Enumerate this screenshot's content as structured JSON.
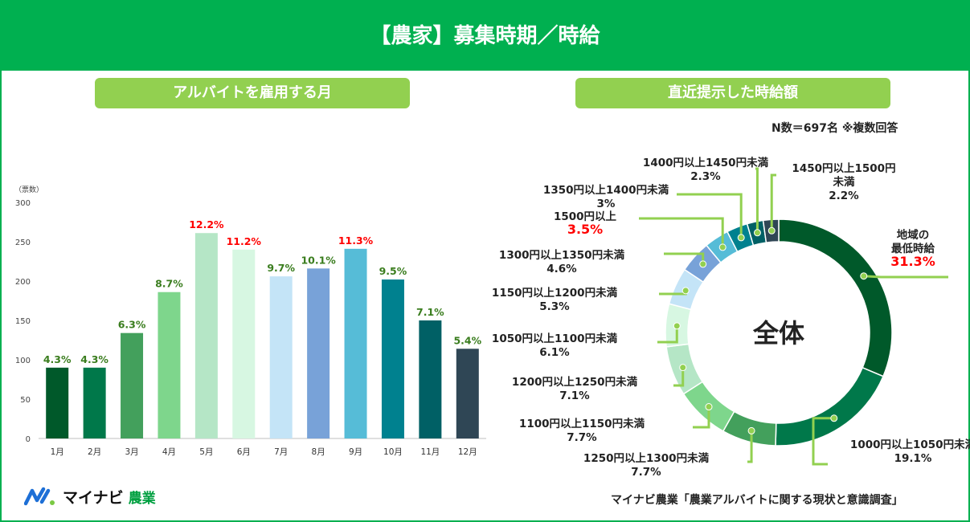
{
  "header": {
    "title": "【農家】募集時期／時給"
  },
  "left_panel": {
    "title": "アルバイトを雇用する月"
  },
  "right_panel": {
    "title": "直近提示した時給額",
    "note": "N数＝697名 ※複数回答"
  },
  "chart_data": [
    {
      "type": "bar",
      "title": "アルバイトを雇用する月",
      "ylabel": "（票数）",
      "ylim": [
        0,
        300
      ],
      "yticks": [
        0,
        50,
        100,
        150,
        200,
        250,
        300
      ],
      "categories": [
        "1月",
        "2月",
        "3月",
        "4月",
        "5月",
        "6月",
        "7月",
        "8月",
        "9月",
        "10月",
        "11月",
        "12月"
      ],
      "values": [
        90,
        90,
        134,
        186,
        261,
        240,
        206,
        216,
        241,
        202,
        150,
        114
      ],
      "labels": [
        "4.3%",
        "4.3%",
        "6.3%",
        "8.7%",
        "12.2%",
        "11.2%",
        "9.7%",
        "10.1%",
        "11.3%",
        "9.5%",
        "7.1%",
        "5.4%"
      ],
      "highlight": [
        false,
        false,
        false,
        false,
        true,
        true,
        false,
        false,
        true,
        false,
        false,
        false
      ],
      "colors": [
        "#00592a",
        "#00784a",
        "#43a05c",
        "#7ed68c",
        "#b5e6c6",
        "#d7f7e2",
        "#c4e4f7",
        "#78a2d8",
        "#56bcd7",
        "#00818f",
        "#006065",
        "#2f4655"
      ]
    },
    {
      "type": "pie",
      "title": "直近提示した時給額",
      "center_label": "全体",
      "slices": [
        {
          "label": "地域の\n最低時給",
          "pct": "31.3%",
          "value": 31.3,
          "color": "#00592a",
          "red": true
        },
        {
          "label": "1000円以上1050円未満",
          "pct": "19.1%",
          "value": 19.1,
          "color": "#00784a",
          "red": false
        },
        {
          "label": "1250円以上1300円未満",
          "pct": "7.7%",
          "value": 7.7,
          "color": "#43a05c",
          "red": false
        },
        {
          "label": "1100円以上1150円未満",
          "pct": "7.7%",
          "value": 7.7,
          "color": "#7ed68c",
          "red": false
        },
        {
          "label": "1200円以上1250円未満",
          "pct": "7.1%",
          "value": 7.1,
          "color": "#b5e6c6",
          "red": false
        },
        {
          "label": "1050円以上1100円未満",
          "pct": "6.1%",
          "value": 6.1,
          "color": "#d7f7e2",
          "red": false
        },
        {
          "label": "1150円以上1200円未満",
          "pct": "5.3%",
          "value": 5.3,
          "color": "#c4e4f7",
          "red": false
        },
        {
          "label": "1300円以上1350円未満",
          "pct": "4.6%",
          "value": 4.6,
          "color": "#78a2d8",
          "red": false
        },
        {
          "label": "1500円以上",
          "pct": "3.5%",
          "value": 3.5,
          "color": "#56bcd7",
          "red": true
        },
        {
          "label": "1350円以上1400円未満",
          "pct": "3%",
          "value": 3.0,
          "color": "#00818f",
          "red": false
        },
        {
          "label": "1400円以上1450円未満",
          "pct": "2.3%",
          "value": 2.3,
          "color": "#006065",
          "red": false
        },
        {
          "label": "1450円以上1500円\n未満",
          "pct": "2.2%",
          "value": 2.2,
          "color": "#2f4655",
          "red": false
        }
      ]
    }
  ],
  "footer": {
    "logo_text": "マイナビ",
    "logo_sub": "農業",
    "source": "マイナビ農業「農業アルバイトに関する現状と意識調査」"
  }
}
